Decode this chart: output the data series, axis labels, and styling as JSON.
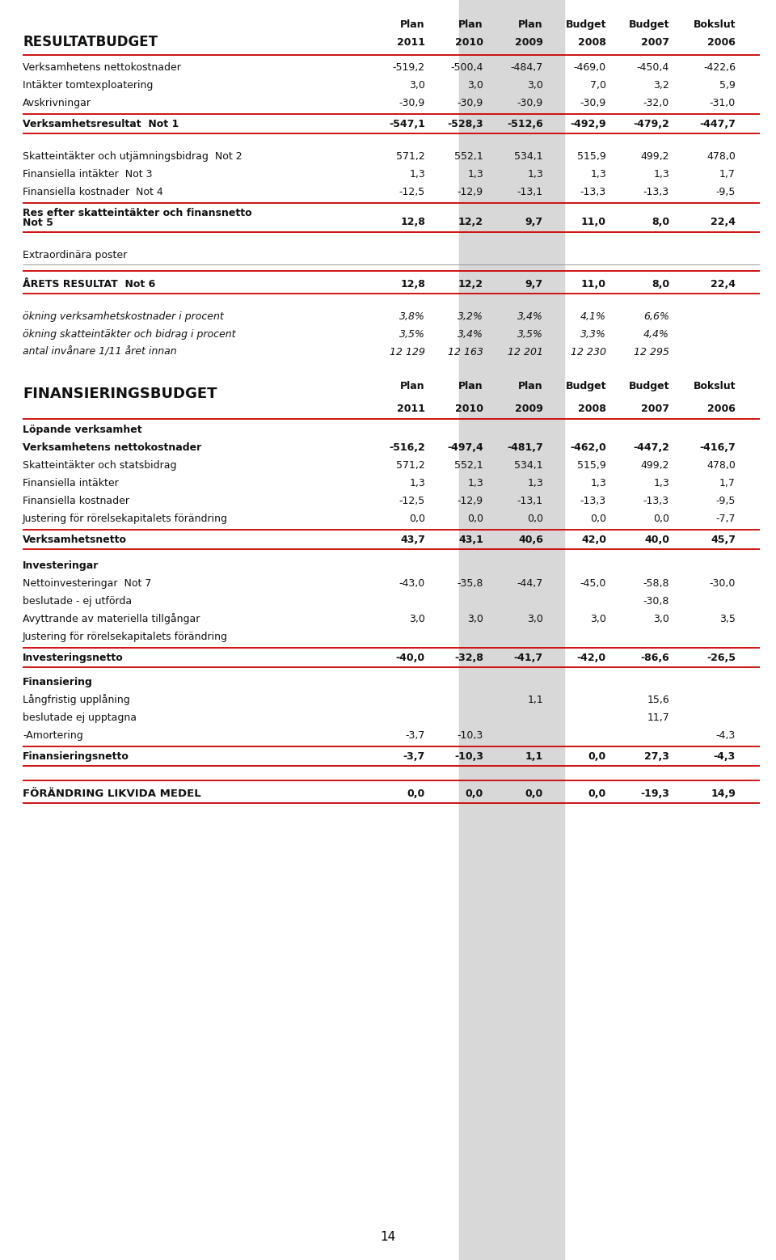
{
  "page_number": "14",
  "background_color": "#ffffff",
  "shaded_color": "#d8d8d8",
  "col_headers_line1": [
    "Plan",
    "Plan",
    "Plan",
    "Budget",
    "Budget",
    "Bokslut"
  ],
  "col_headers_line2": [
    "2011",
    "2010",
    "2009",
    "2008",
    "2007",
    "2006"
  ],
  "section1_title": "RESULTATBUDGET",
  "section1_rows": [
    {
      "label": "Verksamhetens nettokostnader",
      "vals": [
        "-519,2",
        "-500,4",
        "-484,7",
        "-469,0",
        "-450,4",
        "-422,6"
      ]
    },
    {
      "label": "Intäkter tomtexploatering",
      "vals": [
        "3,0",
        "3,0",
        "3,0",
        "7,0",
        "3,2",
        "5,9"
      ]
    },
    {
      "label": "Avskrivningar",
      "vals": [
        "-30,9",
        "-30,9",
        "-30,9",
        "-30,9",
        "-32,0",
        "-31,0"
      ]
    }
  ],
  "section1_subtotal": {
    "label": "Verksamhetsresultat  Not 1",
    "vals": [
      "-547,1",
      "-528,3",
      "-512,6",
      "-492,9",
      "-479,2",
      "-447,7"
    ]
  },
  "section2_rows": [
    {
      "label": "Skatteintäkter och utjämningsbidrag  Not 2",
      "vals": [
        "571,2",
        "552,1",
        "534,1",
        "515,9",
        "499,2",
        "478,0"
      ]
    },
    {
      "label": "Finansiella intäkter  Not 3",
      "vals": [
        "1,3",
        "1,3",
        "1,3",
        "1,3",
        "1,3",
        "1,7"
      ]
    },
    {
      "label": "Finansiella kostnader  Not 4",
      "vals": [
        "-12,5",
        "-12,9",
        "-13,1",
        "-13,3",
        "-13,3",
        "-9,5"
      ]
    }
  ],
  "section2_subtotal_line1": "Res efter skatteintäkter och finansnetto",
  "section2_subtotal_line2": "Not 5",
  "section2_subtotal_vals": [
    "12,8",
    "12,2",
    "9,7",
    "11,0",
    "8,0",
    "22,4"
  ],
  "extra_label": "Extraordinära poster",
  "section3_label": "ÅRETS RESULTAT  Not 6",
  "section3_vals": [
    "12,8",
    "12,2",
    "9,7",
    "11,0",
    "8,0",
    "22,4"
  ],
  "italics_rows": [
    {
      "label": "ökning verksamhetskostnader i procent",
      "vals": [
        "3,8%",
        "3,2%",
        "3,4%",
        "4,1%",
        "6,6%",
        ""
      ]
    },
    {
      "label": "ökning skatteintäkter och bidrag i procent",
      "vals": [
        "3,5%",
        "3,4%",
        "3,5%",
        "3,3%",
        "4,4%",
        ""
      ]
    },
    {
      "label": "antal invånare 1/11 året innan",
      "vals": [
        "12 129",
        "12 163",
        "12 201",
        "12 230",
        "12 295",
        ""
      ]
    }
  ],
  "section4_title": "FINANSIERINGSBUDGET",
  "section4_subheader": "Löpande verksamhet",
  "section4_bold_label": "Verksamhetens nettokostnader",
  "section4_bold_vals": [
    "-516,2",
    "-497,4",
    "-481,7",
    "-462,0",
    "-447,2",
    "-416,7"
  ],
  "section4_rows": [
    {
      "label": "Skatteintäkter och statsbidrag",
      "vals": [
        "571,2",
        "552,1",
        "534,1",
        "515,9",
        "499,2",
        "478,0"
      ]
    },
    {
      "label": "Finansiella intäkter",
      "vals": [
        "1,3",
        "1,3",
        "1,3",
        "1,3",
        "1,3",
        "1,7"
      ]
    },
    {
      "label": "Finansiella kostnader",
      "vals": [
        "-12,5",
        "-12,9",
        "-13,1",
        "-13,3",
        "-13,3",
        "-9,5"
      ]
    },
    {
      "label": "Justering för rörelsekapitalets förändring",
      "vals": [
        "0,0",
        "0,0",
        "0,0",
        "0,0",
        "0,0",
        "-7,7"
      ]
    }
  ],
  "section4_sub1_label": "Verksamhetsnetto",
  "section4_sub1_vals": [
    "43,7",
    "43,1",
    "40,6",
    "42,0",
    "40,0",
    "45,7"
  ],
  "section4_inv_header": "Investeringar",
  "section4_inv_rows": [
    {
      "label": "Nettoinvesteringar  Not 7",
      "vals": [
        "-43,0",
        "-35,8",
        "-44,7",
        "-45,0",
        "-58,8",
        "-30,0"
      ]
    },
    {
      "label": "beslutade - ej utförda",
      "vals": [
        "",
        "",
        "",
        "",
        "-30,8",
        ""
      ]
    },
    {
      "label": "Avyttrande av materiella tillgångar",
      "vals": [
        "3,0",
        "3,0",
        "3,0",
        "3,0",
        "3,0",
        "3,5"
      ]
    },
    {
      "label": "Justering för rörelsekapitalets förändring",
      "vals": [
        "",
        "",
        "",
        "",
        "",
        ""
      ]
    }
  ],
  "section4_sub2_label": "Investeringsnetto",
  "section4_sub2_vals": [
    "-40,0",
    "-32,8",
    "-41,7",
    "-42,0",
    "-86,6",
    "-26,5"
  ],
  "section4_fin_header": "Finansiering",
  "section4_fin_rows": [
    {
      "label": "Långfristig upplåning",
      "vals": [
        "",
        "",
        "1,1",
        "",
        "15,6",
        ""
      ]
    },
    {
      "label": "beslutade ej upptagna",
      "vals": [
        "",
        "",
        "",
        "",
        "11,7",
        ""
      ]
    },
    {
      "label": "-Amortering",
      "vals": [
        "-3,7",
        "-10,3",
        "",
        "",
        "",
        "-4,3"
      ]
    }
  ],
  "section4_sub3_label": "Finansieringsnetto",
  "section4_sub3_vals": [
    "-3,7",
    "-10,3",
    "1,1",
    "0,0",
    "27,3",
    "-4,3"
  ],
  "final_label": "FÖRÄNDRING LIKVIDA MEDEL",
  "final_vals": [
    "0,0",
    "0,0",
    "0,0",
    "0,0",
    "-19,3",
    "14,9"
  ]
}
